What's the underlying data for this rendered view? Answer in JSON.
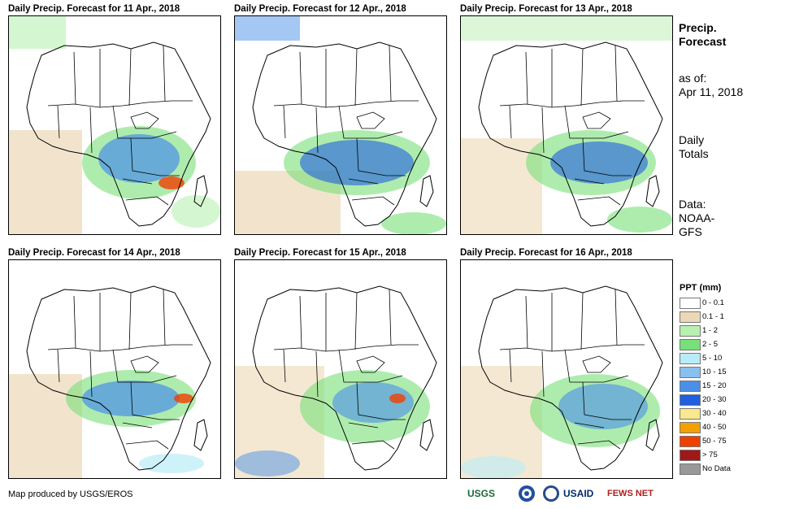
{
  "panels": [
    {
      "title": "Daily Precip. Forecast for 11 Apr., 2018"
    },
    {
      "title": "Daily Precip. Forecast for 12 Apr., 2018"
    },
    {
      "title": "Daily Precip. Forecast for 13 Apr., 2018"
    },
    {
      "title": "Daily Precip. Forecast for 14 Apr., 2018"
    },
    {
      "title": "Daily Precip. Forecast for 15 Apr., 2018"
    },
    {
      "title": "Daily Precip. Forecast for 16 Apr., 2018"
    }
  ],
  "sidebar": {
    "heading_line1": "Precip.",
    "heading_line2": "Forecast",
    "asof_label": "as of:",
    "asof_date": "Apr 11, 2018",
    "daily_line1": "Daily",
    "daily_line2": "Totals",
    "data_line1": "Data:",
    "data_line2": "NOAA-",
    "data_line3": "GFS"
  },
  "legend": {
    "title": "PPT (mm)",
    "items": [
      {
        "label": "0 - 0.1",
        "color": "#ffffff"
      },
      {
        "label": "0.1 - 1",
        "color": "#ecd8b6"
      },
      {
        "label": "1 - 2",
        "color": "#b8f0b0"
      },
      {
        "label": "2 - 5",
        "color": "#78e078"
      },
      {
        "label": "5 - 10",
        "color": "#b8ecf8"
      },
      {
        "label": "10 - 15",
        "color": "#88c0f0"
      },
      {
        "label": "15 - 20",
        "color": "#4a90e8"
      },
      {
        "label": "20 - 30",
        "color": "#1f5fe0"
      },
      {
        "label": "30 - 40",
        "color": "#f8e890"
      },
      {
        "label": "40 - 50",
        "color": "#f4a000"
      },
      {
        "label": "50 - 75",
        "color": "#f04000"
      },
      {
        "label": "> 75",
        "color": "#a01818"
      },
      {
        "label": "No Data",
        "color": "#999999"
      }
    ]
  },
  "footer": {
    "credit": "Map produced by USGS/EROS",
    "logo_usgs": "USGS",
    "logo_usaid": "USAID",
    "logo_fewsnet": "FEWS NET"
  }
}
